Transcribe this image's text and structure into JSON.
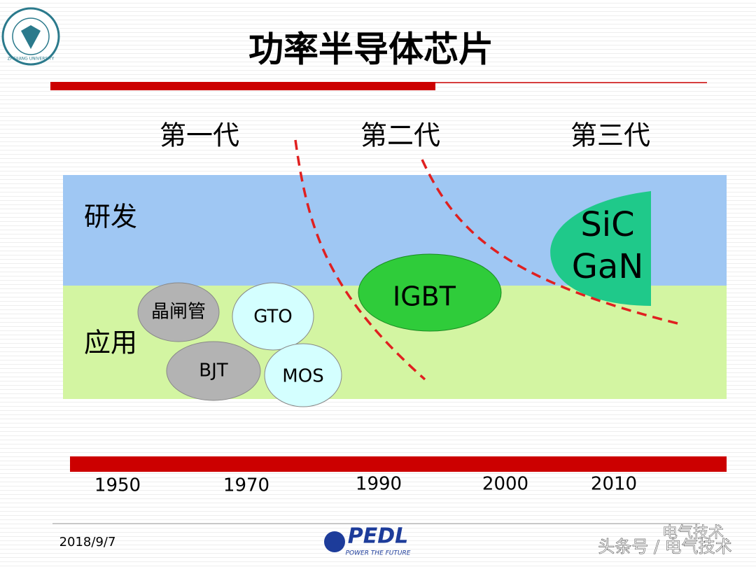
{
  "header": {
    "logo": "ZHEJIANG UNIVERSITY",
    "title": "功率半导体芯片"
  },
  "generations": [
    "第一代",
    "第二代",
    "第三代"
  ],
  "bands": [
    "研发",
    "应用"
  ],
  "devices": [
    "晶闸管",
    "GTO",
    "BJT",
    "MOS",
    "IGBT",
    "SiC",
    "GaN"
  ],
  "years": [
    "1950",
    "1970",
    "1990",
    "2000",
    "2010"
  ],
  "footer": {
    "date": "2018/9/7",
    "brand": "PEDL",
    "slogan": "POWER THE FUTURE",
    "watermark": "电气技术",
    "source": "头条号 / 电气技术"
  }
}
